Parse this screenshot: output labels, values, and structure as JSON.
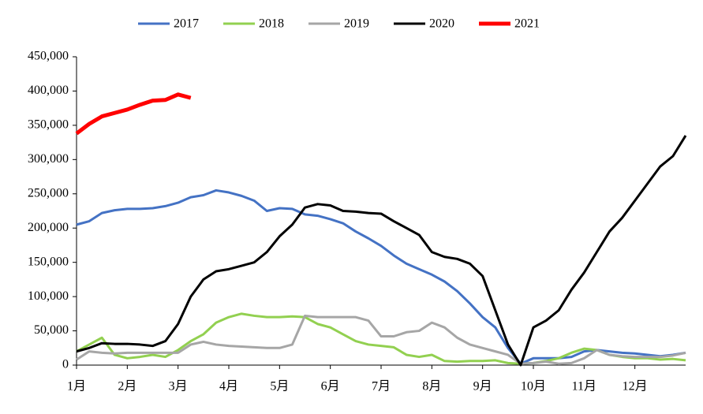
{
  "chart_data": {
    "type": "line",
    "x": [
      1,
      1.25,
      1.5,
      1.75,
      2,
      2.25,
      2.5,
      2.75,
      3,
      3.25,
      3.5,
      3.75,
      4,
      4.25,
      4.5,
      4.75,
      5,
      5.25,
      5.5,
      5.75,
      6,
      6.25,
      6.5,
      6.75,
      7,
      7.25,
      7.5,
      7.75,
      8,
      8.25,
      8.5,
      8.75,
      9,
      9.25,
      9.5,
      9.75,
      10,
      10.25,
      10.5,
      10.75,
      11,
      11.25,
      11.5,
      11.75,
      12,
      12.25,
      12.5,
      12.75,
      13
    ],
    "series": [
      {
        "name": "2017",
        "color": "#4472c4",
        "width": 3,
        "values": [
          205000,
          210000,
          222000,
          226000,
          228000,
          228000,
          229000,
          232000,
          237000,
          245000,
          248000,
          255000,
          252000,
          247000,
          240000,
          225000,
          229000,
          228000,
          220000,
          218000,
          213000,
          207000,
          195000,
          185000,
          174000,
          160000,
          148000,
          140000,
          132000,
          122000,
          108000,
          90000,
          70000,
          55000,
          25000,
          2000,
          10000,
          10000,
          10000,
          12000,
          20000,
          22000,
          20000,
          18000,
          17000,
          15000,
          13000,
          15000,
          18000
        ]
      },
      {
        "name": "2018",
        "color": "#92d050",
        "width": 3,
        "values": [
          20000,
          30000,
          40000,
          15000,
          10000,
          12000,
          15000,
          12000,
          22000,
          35000,
          45000,
          62000,
          70000,
          75000,
          72000,
          70000,
          70000,
          71000,
          70000,
          60000,
          55000,
          45000,
          35000,
          30000,
          28000,
          26000,
          15000,
          12000,
          15000,
          6000,
          5000,
          6000,
          6000,
          7000,
          3000,
          2000,
          3000,
          6000,
          10000,
          18000,
          24000,
          22000,
          15000,
          12000,
          10000,
          10000,
          8000,
          9000,
          7000
        ]
      },
      {
        "name": "2019",
        "color": "#a6a6a6",
        "width": 3,
        "values": [
          8000,
          20000,
          18000,
          17000,
          18000,
          18000,
          18000,
          18000,
          18000,
          30000,
          34000,
          30000,
          28000,
          27000,
          26000,
          25000,
          25000,
          30000,
          72000,
          70000,
          70000,
          70000,
          70000,
          65000,
          42000,
          42000,
          48000,
          50000,
          62000,
          55000,
          40000,
          30000,
          25000,
          20000,
          15000,
          2000,
          3000,
          5000,
          2000,
          3000,
          10000,
          22000,
          15000,
          13000,
          12000,
          12000,
          12000,
          14000,
          18000
        ]
      },
      {
        "name": "2020",
        "color": "#000000",
        "width": 3,
        "values": [
          20000,
          25000,
          32000,
          31000,
          31000,
          30000,
          28000,
          35000,
          60000,
          100000,
          125000,
          137000,
          140000,
          145000,
          150000,
          165000,
          188000,
          205000,
          230000,
          235000,
          233000,
          225000,
          224000,
          222000,
          221000,
          210000,
          200000,
          190000,
          165000,
          158000,
          155000,
          148000,
          130000,
          80000,
          30000,
          0,
          55000,
          65000,
          80000,
          110000,
          135000,
          165000,
          195000,
          215000,
          240000,
          265000,
          290000,
          305000,
          335000
        ]
      },
      {
        "name": "2021",
        "color": "#ff0000",
        "width": 5,
        "values": [
          338000,
          352000,
          363000,
          368000,
          373000,
          380000,
          386000,
          387000,
          395000,
          390000,
          null,
          null,
          null,
          null,
          null,
          null,
          null,
          null,
          null,
          null,
          null,
          null,
          null,
          null,
          null,
          null,
          null,
          null,
          null,
          null,
          null,
          null,
          null,
          null,
          null,
          null,
          null,
          null,
          null,
          null,
          null,
          null,
          null,
          null,
          null,
          null,
          null,
          null,
          null
        ]
      }
    ],
    "xlim": [
      1,
      13
    ],
    "xticks": [
      {
        "value": 1,
        "label": "1月"
      },
      {
        "value": 2,
        "label": "2月"
      },
      {
        "value": 3,
        "label": "3月"
      },
      {
        "value": 4,
        "label": "4月"
      },
      {
        "value": 5,
        "label": "5月"
      },
      {
        "value": 6,
        "label": "6月"
      },
      {
        "value": 7,
        "label": "7月"
      },
      {
        "value": 8,
        "label": "8月"
      },
      {
        "value": 9,
        "label": "9月"
      },
      {
        "value": 10,
        "label": "10月"
      },
      {
        "value": 11,
        "label": "11月"
      },
      {
        "value": 12,
        "label": "12月"
      }
    ],
    "ylim": [
      0,
      450000
    ],
    "yticks": [
      {
        "value": 0,
        "label": "0"
      },
      {
        "value": 50000,
        "label": "50,000"
      },
      {
        "value": 100000,
        "label": "100,000"
      },
      {
        "value": 150000,
        "label": "150,000"
      },
      {
        "value": 200000,
        "label": "200,000"
      },
      {
        "value": 250000,
        "label": "250,000"
      },
      {
        "value": 300000,
        "label": "300,000"
      },
      {
        "value": 350000,
        "label": "350,000"
      },
      {
        "value": 400000,
        "label": "400,000"
      },
      {
        "value": 450000,
        "label": "450,000"
      }
    ],
    "legend": "top"
  }
}
